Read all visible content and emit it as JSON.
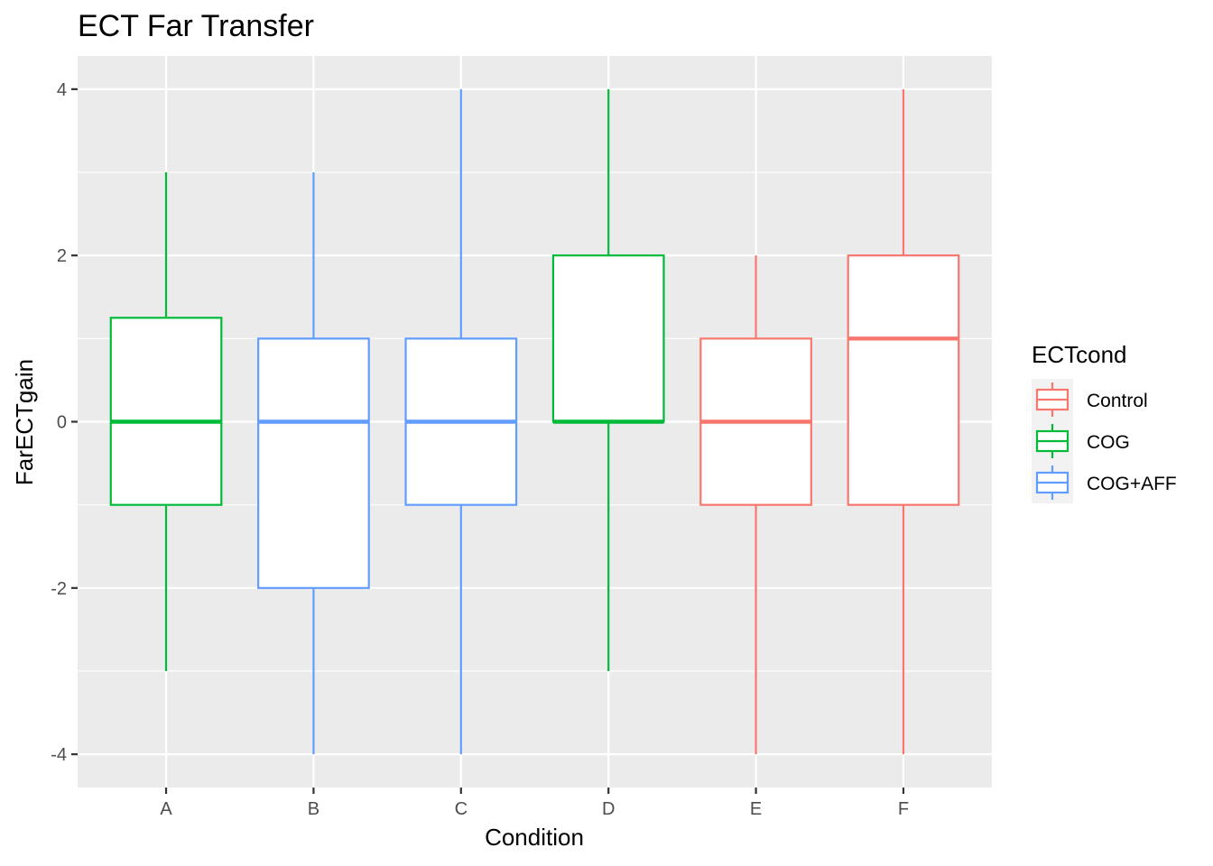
{
  "chart_data": {
    "type": "boxplot",
    "title": "ECT Far Transfer",
    "xlabel": "Condition",
    "ylabel": "FarECTgain",
    "categories": [
      "A",
      "B",
      "C",
      "D",
      "E",
      "F"
    ],
    "ylim": [
      -4.4,
      4.4
    ],
    "yticks": [
      -4,
      -2,
      0,
      2,
      4
    ],
    "ytick_labels": [
      "-4",
      "-2",
      "0",
      "2",
      "4"
    ],
    "grid": true,
    "legend": {
      "title": "ECTcond",
      "position": "right",
      "entries": [
        {
          "label": "Control",
          "color": "#F8766D"
        },
        {
          "label": "COG",
          "color": "#00BA38"
        },
        {
          "label": "COG+AFF",
          "color": "#619CFF"
        }
      ]
    },
    "boxes": [
      {
        "category": "A",
        "group": "COG",
        "min": -3,
        "q1": -1,
        "median": 0,
        "q3": 1.25,
        "max": 3
      },
      {
        "category": "B",
        "group": "COG+AFF",
        "min": -4,
        "q1": -2,
        "median": 0,
        "q3": 1,
        "max": 3
      },
      {
        "category": "C",
        "group": "COG+AFF",
        "min": -4,
        "q1": -1,
        "median": 0,
        "q3": 1,
        "max": 4
      },
      {
        "category": "D",
        "group": "COG",
        "min": -3,
        "q1": 0,
        "median": 0,
        "q3": 2,
        "max": 4
      },
      {
        "category": "E",
        "group": "Control",
        "min": -4,
        "q1": -1,
        "median": 0,
        "q3": 1,
        "max": 2
      },
      {
        "category": "F",
        "group": "Control",
        "min": -4,
        "q1": -1,
        "median": 1,
        "q3": 2,
        "max": 4
      }
    ],
    "colors": {
      "panel_background": "#EBEBEB",
      "grid_major": "#FFFFFF",
      "Control": "#F8766D",
      "COG": "#00BA38",
      "COG+AFF": "#619CFF"
    }
  }
}
